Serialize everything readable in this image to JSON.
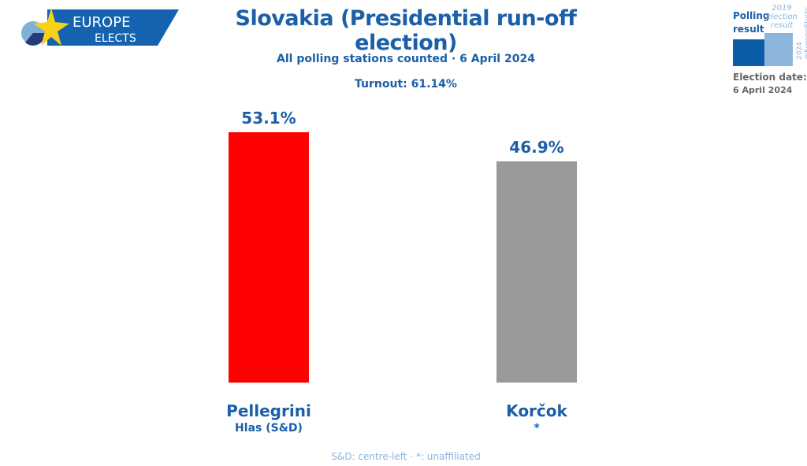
{
  "logo": {
    "line1": "EUROPE",
    "line2": "ELECTS"
  },
  "chart_data": {
    "type": "bar",
    "title": "Slovakia (Presidential run-off election)",
    "subtitle": "All polling stations counted · 6 April 2024",
    "turnout": "Turnout: 61.14%",
    "categories": [
      "Pellegrini",
      "Korčok"
    ],
    "parties": [
      "Hlas (S&D)",
      "*"
    ],
    "values": [
      53.1,
      46.9
    ],
    "labels": [
      "53.1%",
      "46.9%"
    ],
    "colors": [
      "#ff0000",
      "#999999"
    ],
    "ylim": [
      0,
      55
    ],
    "footnote": "S&D: centre-left · *: unaffiliated"
  },
  "legend": {
    "polling": "Polling result",
    "previous": "2019 election result",
    "credit": "2024 @EuropeElects",
    "date_label": "Election date:",
    "date": "6 April 2024",
    "polling_color": "#0c5da8",
    "previous_color": "#8db6dc"
  }
}
